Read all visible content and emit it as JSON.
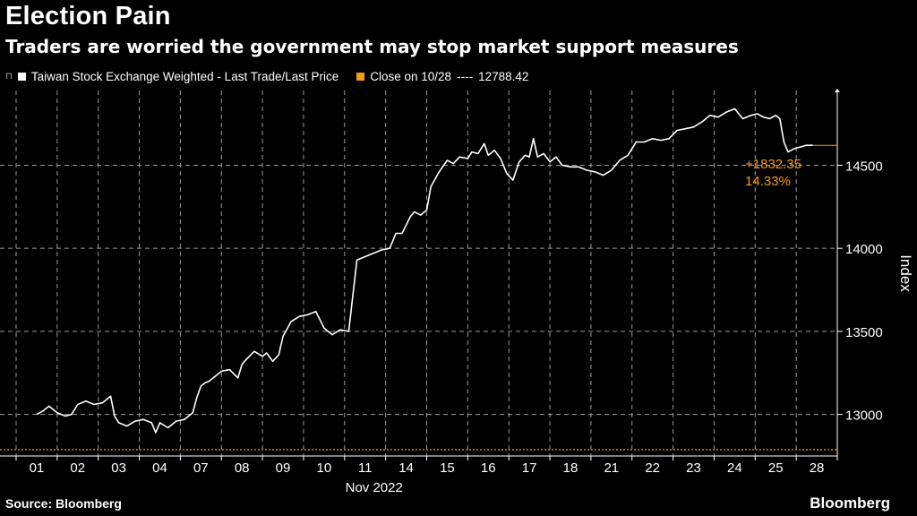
{
  "header": {
    "title": "Election Pain",
    "subtitle": "Traders are worried the government may stop market support measures"
  },
  "legend": {
    "series_label": "Taiwan Stock Exchange Weighted - Last Trade/Last Price",
    "close_label": "Close on 10/28",
    "close_dashes": "----",
    "close_value": "12788.42"
  },
  "colors": {
    "series": "#ffffff",
    "close": "#f39c12",
    "grid": "#9a9a9a",
    "background": "#000000"
  },
  "footer": {
    "source": "Source: Bloomberg",
    "brand": "Bloomberg"
  },
  "chart_data": {
    "type": "line",
    "title": "Election Pain",
    "xlabel": "Nov 2022",
    "ylabel": "Index",
    "ylim": [
      12750,
      14950
    ],
    "yticks": [
      13000,
      13500,
      14000,
      14500
    ],
    "categories": [
      "01",
      "02",
      "03",
      "04",
      "07",
      "08",
      "09",
      "10",
      "11",
      "14",
      "15",
      "16",
      "17",
      "18",
      "21",
      "22",
      "23",
      "24",
      "25",
      "28"
    ],
    "reference_line": {
      "label": "Close on 10/28",
      "value": 12788.42
    },
    "annotation": {
      "change": "+1832.35",
      "percent": "14.33%"
    },
    "series": [
      {
        "name": "Taiwan Stock Exchange Weighted - Last Trade/Last Price",
        "x": [
          0,
          0.15,
          0.3,
          0.5,
          0.7,
          0.85,
          1.0,
          1.2,
          1.4,
          1.6,
          1.8,
          1.9,
          2.0,
          2.2,
          2.4,
          2.6,
          2.8,
          2.9,
          3.0,
          3.2,
          3.4,
          3.6,
          3.8,
          3.9,
          4.0,
          4.1,
          4.2,
          4.35,
          4.5,
          4.7,
          4.9,
          5.0,
          5.1,
          5.3,
          5.5,
          5.6,
          5.75,
          5.9,
          6.0,
          6.2,
          6.4,
          6.6,
          6.8,
          7.0,
          7.2,
          7.4,
          7.6,
          7.8,
          8.0,
          8.1,
          8.2,
          8.4,
          8.6,
          8.75,
          8.9,
          9.0,
          9.1,
          9.2,
          9.35,
          9.5,
          9.6,
          9.8,
          10.0,
          10.15,
          10.3,
          10.5,
          10.6,
          10.75,
          10.9,
          11.0,
          11.15,
          11.3,
          11.45,
          11.6,
          11.75,
          11.9,
          12.0,
          12.1,
          12.2,
          12.35,
          12.5,
          12.65,
          12.8,
          13.0,
          13.2,
          13.4,
          13.6,
          13.8,
          14.0,
          14.2,
          14.4,
          14.6,
          14.8,
          15.0,
          15.2,
          15.4,
          15.6,
          15.8,
          16.0,
          16.2,
          16.4,
          16.6,
          16.8,
          17.0,
          17.2,
          17.4,
          17.55,
          17.7,
          17.85,
          18.0,
          18.1,
          18.2,
          18.3,
          18.45,
          18.6,
          18.75,
          18.9
        ],
        "values": [
          13000,
          13020,
          13050,
          13010,
          12990,
          13000,
          13060,
          13080,
          13060,
          13070,
          13110,
          12990,
          12950,
          12930,
          12960,
          12970,
          12950,
          12890,
          12950,
          12920,
          12960,
          12970,
          13010,
          13100,
          13170,
          13190,
          13200,
          13230,
          13260,
          13270,
          13220,
          13300,
          13330,
          13380,
          13350,
          13370,
          13320,
          13360,
          13470,
          13560,
          13590,
          13600,
          13620,
          13520,
          13480,
          13510,
          13500,
          13930,
          13950,
          13960,
          13970,
          13990,
          14000,
          14090,
          14090,
          14140,
          14190,
          14220,
          14200,
          14230,
          14370,
          14460,
          14530,
          14510,
          14550,
          14540,
          14580,
          14570,
          14630,
          14560,
          14590,
          14540,
          14450,
          14410,
          14520,
          14560,
          14550,
          14660,
          14550,
          14570,
          14520,
          14550,
          14500,
          14490,
          14490,
          14470,
          14460,
          14440,
          14470,
          14530,
          14560,
          14640,
          14640,
          14660,
          14650,
          14660,
          14710,
          14720,
          14730,
          14760,
          14800,
          14790,
          14820,
          14840,
          14780,
          14800,
          14810,
          14790,
          14780,
          14800,
          14780,
          14640,
          14580,
          14600,
          14610,
          14620,
          14620
        ]
      }
    ]
  }
}
